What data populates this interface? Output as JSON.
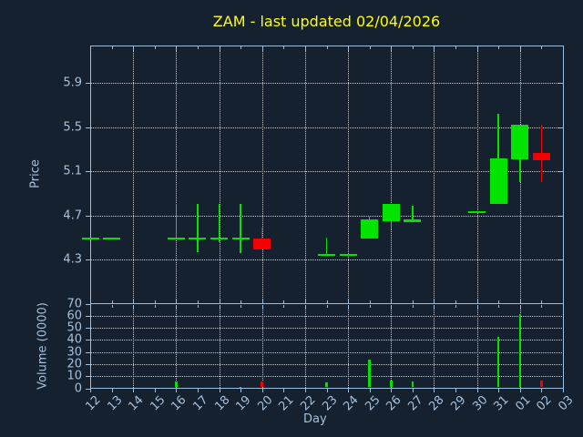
{
  "colors": {
    "background": "#15212f",
    "axis": "#9cbede",
    "text": "#a5c0dc",
    "grid": "#c7ccd2",
    "title": "#ffff00",
    "up": "#00e400",
    "down": "#f50000"
  },
  "chart_data": {
    "type": "candlestick",
    "title": "ZAM - last updated 02/04/2026",
    "xlabel": "Day",
    "ylabel_price": "Price",
    "ylabel_volume": "Volume (0000)",
    "grid": true,
    "x_labels": [
      "12",
      "13",
      "14",
      "15",
      "16",
      "17",
      "18",
      "19",
      "20",
      "21",
      "22",
      "23",
      "24",
      "25",
      "26",
      "27",
      "28",
      "29",
      "30",
      "31",
      "01",
      "02",
      "03"
    ],
    "price_ticks": [
      4.3,
      4.7,
      5.1,
      5.5,
      5.9
    ],
    "price_ylim": [
      3.9,
      6.24
    ],
    "volume_ticks": [
      0,
      10,
      20,
      30,
      40,
      50,
      60,
      70
    ],
    "volume_ylim": [
      0,
      70
    ],
    "candles": [
      {
        "day": "12",
        "open": 4.49,
        "high": 4.49,
        "low": 4.49,
        "close": 4.49,
        "volume": 0,
        "dir": "up"
      },
      {
        "day": "13",
        "open": 4.49,
        "high": 4.49,
        "low": 4.49,
        "close": 4.49,
        "volume": 0,
        "dir": "up"
      },
      {
        "day": "16",
        "open": 4.49,
        "high": 4.8,
        "low": 4.49,
        "close": 4.49,
        "volume": 6,
        "dir": "up"
      },
      {
        "day": "17",
        "open": 4.49,
        "high": 4.8,
        "low": 4.37,
        "close": 4.49,
        "volume": 0,
        "dir": "up"
      },
      {
        "day": "18",
        "open": 4.49,
        "high": 4.8,
        "low": 4.46,
        "close": 4.49,
        "volume": 0,
        "dir": "up"
      },
      {
        "day": "19",
        "open": 4.49,
        "high": 4.8,
        "low": 4.36,
        "close": 4.49,
        "volume": 1.5,
        "dir": "up"
      },
      {
        "day": "20",
        "open": 4.49,
        "high": 4.59,
        "low": 4.39,
        "close": 4.39,
        "volume": 6,
        "dir": "down"
      },
      {
        "day": "23",
        "open": 4.34,
        "high": 4.5,
        "low": 4.34,
        "close": 4.34,
        "volume": 5,
        "dir": "up"
      },
      {
        "day": "24",
        "open": 4.34,
        "high": 4.34,
        "low": 4.34,
        "close": 4.34,
        "volume": 0,
        "dir": "up"
      },
      {
        "day": "25",
        "open": 4.49,
        "high": 4.69,
        "low": 4.49,
        "close": 4.66,
        "volume": 24,
        "dir": "up"
      },
      {
        "day": "26",
        "open": 4.65,
        "high": 4.8,
        "low": 4.57,
        "close": 4.8,
        "volume": 6.5,
        "dir": "up"
      },
      {
        "day": "27",
        "open": 4.65,
        "high": 4.79,
        "low": 4.65,
        "close": 4.65,
        "volume": 5.5,
        "dir": "up"
      },
      {
        "day": "30",
        "open": 4.73,
        "high": 4.73,
        "low": 4.73,
        "close": 4.73,
        "volume": 0,
        "dir": "up"
      },
      {
        "day": "31",
        "open": 4.8,
        "high": 5.62,
        "low": 4.8,
        "close": 5.22,
        "volume": 42.5,
        "dir": "up"
      },
      {
        "day": "01",
        "open": 5.21,
        "high": 5.52,
        "low": 5.0,
        "close": 5.52,
        "volume": 61,
        "dir": "up"
      },
      {
        "day": "02",
        "open": 5.27,
        "high": 5.52,
        "low": 5.0,
        "close": 5.2,
        "volume": 6.5,
        "dir": "down"
      }
    ]
  }
}
